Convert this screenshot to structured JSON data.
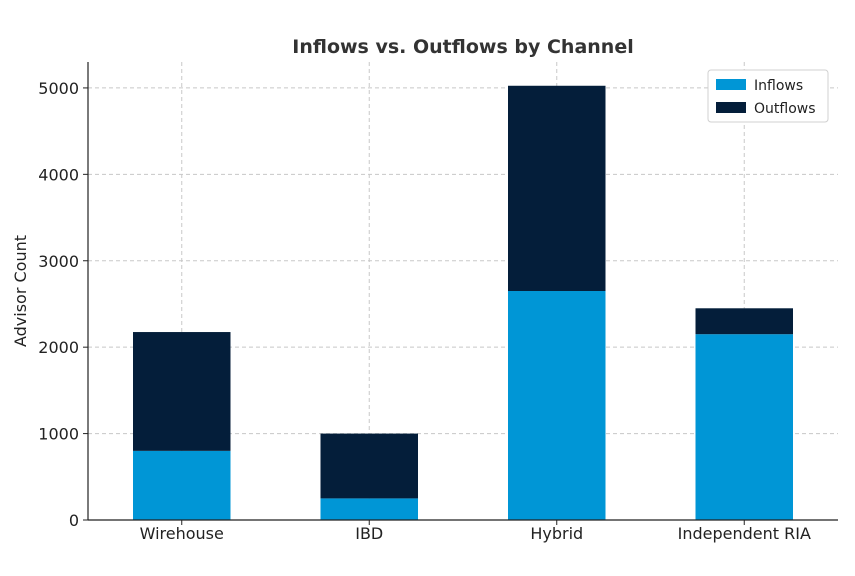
{
  "chart_data": {
    "type": "bar",
    "stacked": true,
    "title": "Inflows vs. Outflows by Channel",
    "xlabel": "",
    "ylabel": "Advisor Count",
    "categories": [
      "Wirehouse",
      "IBD",
      "Hybrid",
      "Independent RIA"
    ],
    "series": [
      {
        "name": "Inflows",
        "color": "#0096D6",
        "values": [
          800,
          250,
          2650,
          2150
        ]
      },
      {
        "name": "Outflows",
        "color": "#041E3A",
        "values": [
          1375,
          750,
          2375,
          300
        ]
      }
    ],
    "ylim": [
      0,
      5300
    ],
    "yticks": [
      0,
      1000,
      2000,
      3000,
      4000,
      5000
    ],
    "grid": true,
    "legend": "top-right"
  }
}
